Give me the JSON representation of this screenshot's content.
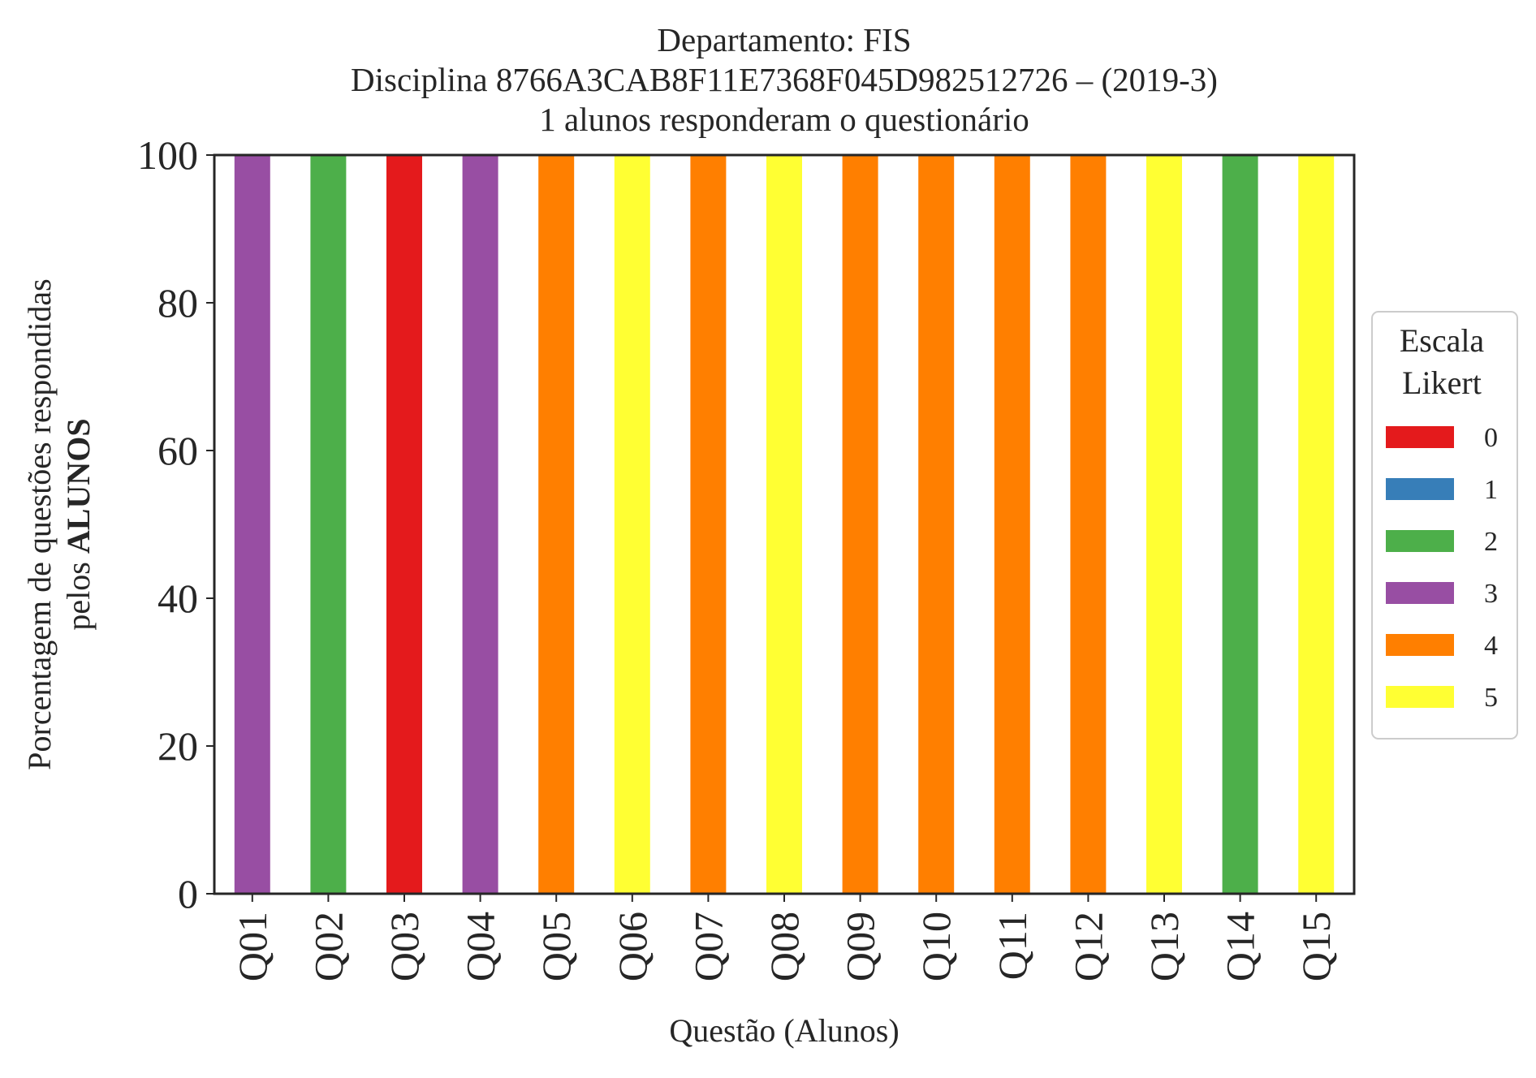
{
  "chart_data": {
    "type": "bar",
    "stacked": true,
    "title_lines": [
      "Departamento: FIS",
      "Disciplina 8766A3CAB8F11E7368F045D982512726 – (2019-3)",
      "1 alunos responderam o questionário"
    ],
    "xlabel": "Questão (Alunos)",
    "ylabel_line1": "Porcentagem de questões respondidas",
    "ylabel_line2_prefix": "pelos ",
    "ylabel_line2_bold": "ALUNOS",
    "categories": [
      "Q01",
      "Q02",
      "Q03",
      "Q04",
      "Q05",
      "Q06",
      "Q07",
      "Q08",
      "Q09",
      "Q10",
      "Q11",
      "Q12",
      "Q13",
      "Q14",
      "Q15"
    ],
    "ylim": [
      0,
      100
    ],
    "yticks": [
      "0",
      "20",
      "40",
      "60",
      "80",
      "100"
    ],
    "grid": false,
    "legend": {
      "title_lines": [
        "Escala",
        "Likert"
      ],
      "placement": "right-center",
      "entries": [
        {
          "label": "0",
          "color": "#e41a1c"
        },
        {
          "label": "1",
          "color": "#377eb8"
        },
        {
          "label": "2",
          "color": "#4daf4a"
        },
        {
          "label": "3",
          "color": "#984ea3"
        },
        {
          "label": "4",
          "color": "#ff7f00"
        },
        {
          "label": "5",
          "color": "#ffff33"
        }
      ]
    },
    "series": [
      {
        "name": "0",
        "color": "#e41a1c",
        "values": [
          0,
          0,
          100,
          0,
          0,
          0,
          0,
          0,
          0,
          0,
          0,
          0,
          0,
          0,
          0
        ]
      },
      {
        "name": "1",
        "color": "#377eb8",
        "values": [
          0,
          0,
          0,
          0,
          0,
          0,
          0,
          0,
          0,
          0,
          0,
          0,
          0,
          0,
          0
        ]
      },
      {
        "name": "2",
        "color": "#4daf4a",
        "values": [
          0,
          100,
          0,
          0,
          0,
          0,
          0,
          0,
          0,
          0,
          0,
          0,
          0,
          100,
          0
        ]
      },
      {
        "name": "3",
        "color": "#984ea3",
        "values": [
          100,
          0,
          0,
          100,
          0,
          0,
          0,
          0,
          0,
          0,
          0,
          0,
          0,
          0,
          0
        ]
      },
      {
        "name": "4",
        "color": "#ff7f00",
        "values": [
          0,
          0,
          0,
          0,
          100,
          0,
          100,
          0,
          100,
          100,
          100,
          100,
          0,
          0,
          0
        ]
      },
      {
        "name": "5",
        "color": "#ffff33",
        "values": [
          0,
          0,
          0,
          0,
          0,
          100,
          0,
          100,
          0,
          0,
          0,
          0,
          100,
          0,
          100
        ]
      }
    ]
  }
}
